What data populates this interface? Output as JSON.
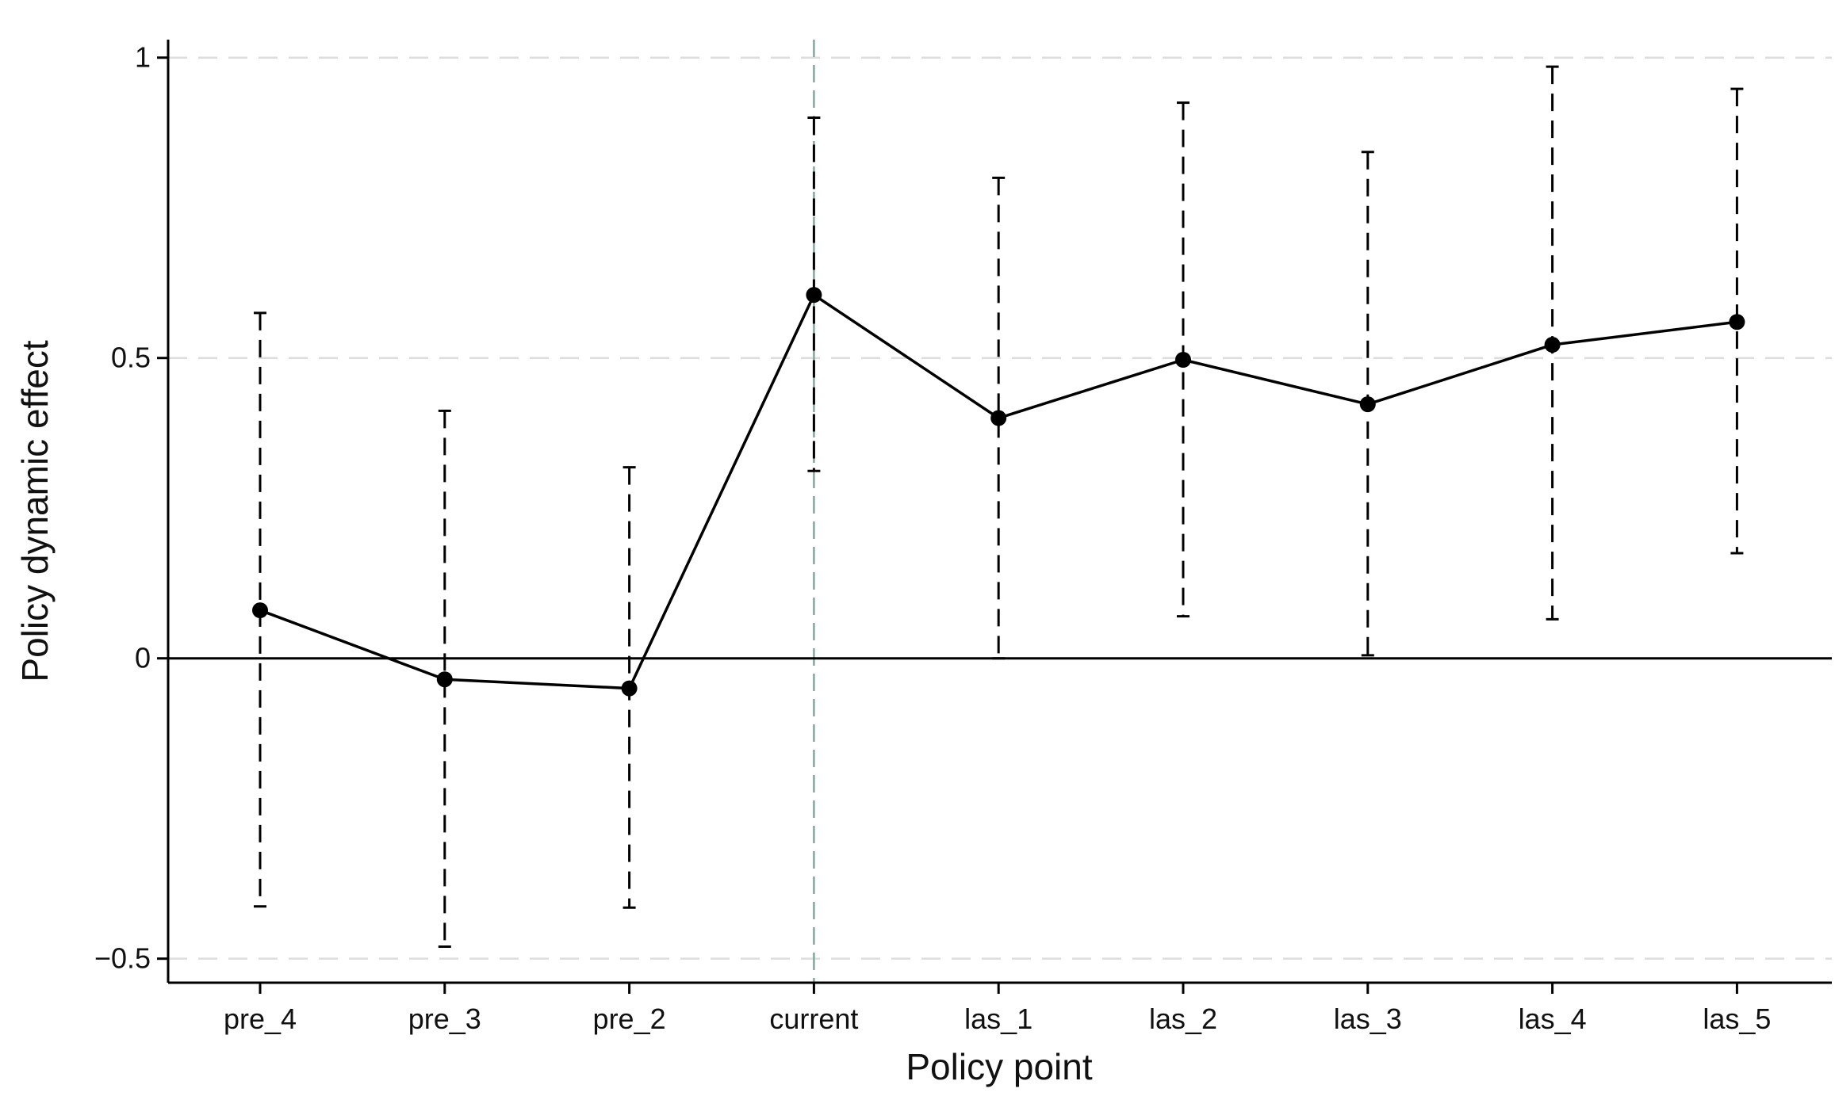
{
  "chart_data": {
    "type": "line",
    "title": "",
    "xlabel": "Policy point",
    "ylabel": "Policy dynamic effect",
    "categories": [
      "pre_4",
      "pre_3",
      "pre_2",
      "current",
      "las_1",
      "las_2",
      "las_3",
      "las_4",
      "las_5"
    ],
    "series": [
      {
        "values": [
          0.08,
          -0.035,
          -0.05,
          0.605,
          0.4,
          0.497,
          0.423,
          0.522,
          0.56
        ],
        "ci_lower": [
          -0.413,
          -0.48,
          -0.415,
          0.312,
          0.0,
          0.07,
          0.005,
          0.065,
          0.175
        ],
        "ci_upper": [
          0.575,
          0.412,
          0.318,
          0.9,
          0.8,
          0.925,
          0.843,
          0.985,
          0.948
        ]
      }
    ],
    "ylim": [
      -0.54,
      1.03
    ],
    "yticks": [
      -0.5,
      0,
      0.5,
      1
    ],
    "ytick_labels": [
      "−0.5",
      "0",
      "0.5",
      "1"
    ],
    "reference_line_y": 0,
    "reference_line_x": "current",
    "grid": "horizontal dashed",
    "legend": "none",
    "colors": {
      "series": "#000000",
      "grid": "#dddddd",
      "reference_vertical": "#7faa9a",
      "axis": "#000000"
    }
  }
}
